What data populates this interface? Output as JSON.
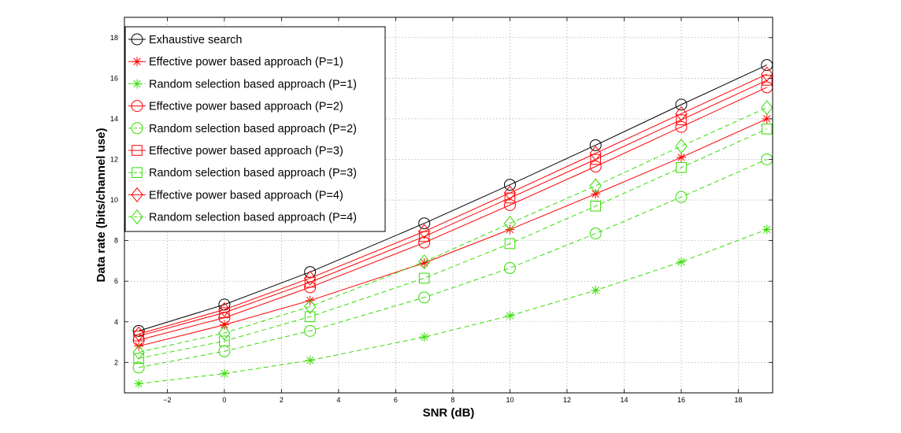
{
  "chart_data": {
    "type": "line",
    "title": "",
    "xlabel": "SNR (dB)",
    "ylabel": "Data rate (bits/channel use)",
    "xlim": [
      -3.5,
      19.2
    ],
    "ylim": [
      0.5,
      19
    ],
    "xticks": [
      -2,
      0,
      2,
      4,
      6,
      8,
      10,
      12,
      14,
      16,
      18
    ],
    "yticks": [
      2,
      4,
      6,
      8,
      10,
      12,
      14,
      16,
      18
    ],
    "grid": true,
    "legend_position": "top-left",
    "x": [
      -3,
      0,
      3,
      7,
      10,
      13,
      16,
      19
    ],
    "series": [
      {
        "name": "Exhaustive search",
        "color": "#000000",
        "dash": "solid",
        "marker": "circle",
        "values": [
          3.55,
          4.85,
          6.45,
          8.85,
          10.75,
          12.7,
          14.7,
          16.65
        ]
      },
      {
        "name": "Effective power based approach (P=1)",
        "color": "#ff0000",
        "dash": "solid",
        "marker": "asterisk",
        "values": [
          2.8,
          3.85,
          5.05,
          6.9,
          8.55,
          10.3,
          12.1,
          14.0
        ]
      },
      {
        "name": "Random selection based approach (P=1)",
        "color": "#33dd00",
        "dash": "dashed",
        "marker": "asterisk",
        "values": [
          0.95,
          1.45,
          2.1,
          3.25,
          4.3,
          5.55,
          6.95,
          8.55
        ]
      },
      {
        "name": "Effective power based approach (P=2)",
        "color": "#ff0000",
        "dash": "solid",
        "marker": "circle",
        "values": [
          3.1,
          4.2,
          5.7,
          7.9,
          9.75,
          11.65,
          13.6,
          15.55
        ]
      },
      {
        "name": "Random selection based approach (P=2)",
        "color": "#33dd00",
        "dash": "dashed",
        "marker": "circle",
        "values": [
          1.75,
          2.55,
          3.55,
          5.2,
          6.65,
          8.35,
          10.15,
          12.0
        ]
      },
      {
        "name": "Effective power based approach (P=3)",
        "color": "#ff0000",
        "dash": "solid",
        "marker": "square",
        "values": [
          3.3,
          4.45,
          5.95,
          8.2,
          10.1,
          12.0,
          13.95,
          15.9
        ]
      },
      {
        "name": "Random selection based approach (P=3)",
        "color": "#33dd00",
        "dash": "dashed",
        "marker": "square",
        "values": [
          2.2,
          3.05,
          4.25,
          6.15,
          7.85,
          9.7,
          11.6,
          13.5
        ]
      },
      {
        "name": "Effective power based approach (P=4)",
        "color": "#ff0000",
        "dash": "solid",
        "marker": "diamond",
        "values": [
          3.4,
          4.6,
          6.15,
          8.45,
          10.35,
          12.3,
          14.25,
          16.2
        ]
      },
      {
        "name": "Random selection based approach (P=4)",
        "color": "#33dd00",
        "dash": "dashed",
        "marker": "diamond",
        "values": [
          2.5,
          3.45,
          4.75,
          6.95,
          8.85,
          10.7,
          12.65,
          14.55
        ]
      }
    ]
  }
}
